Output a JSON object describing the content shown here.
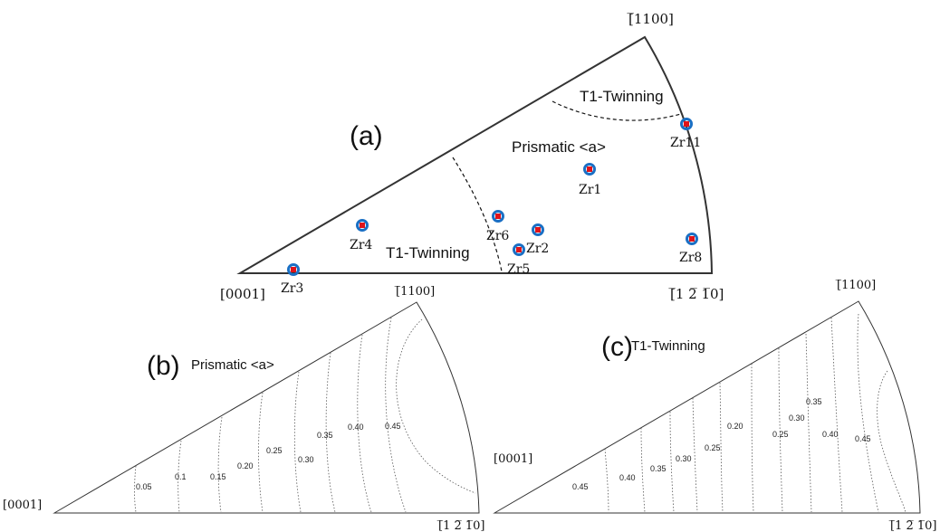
{
  "panel_a": {
    "label": "(a)",
    "directions": {
      "corner_top": "[̅1100]",
      "corner_left": "[0001]",
      "corner_right": "[̅1 2̅ 1̅0]"
    },
    "regions": {
      "upper": "T1-Twinning",
      "middle": "Prismatic <a>",
      "lower": "T1-Twinning"
    },
    "samples": [
      {
        "name": "Zr11"
      },
      {
        "name": "Zr1"
      },
      {
        "name": "Zr6"
      },
      {
        "name": "Zr2"
      },
      {
        "name": "Zr4"
      },
      {
        "name": "Zr5"
      },
      {
        "name": "Zr8"
      },
      {
        "name": "Zr3"
      }
    ],
    "marker_colors": {
      "ring": "#1a6fc4",
      "core": "#e0141a"
    }
  },
  "panel_b": {
    "label": "(b)",
    "title": "Prismatic <a>",
    "directions": {
      "corner_top": "[̅1100]",
      "corner_left": "[0001]",
      "corner_right": "[̅1 2̅ 1̅0]"
    },
    "contour_labels": [
      "0.05",
      "0.1",
      "0.15",
      "0.20",
      "0.25",
      "0.30",
      "0.35",
      "0.40",
      "0.45"
    ]
  },
  "panel_c": {
    "label": "(c)",
    "title": "T1-Twinning",
    "directions": {
      "corner_top": "[̅1100]",
      "corner_left": "[0001]",
      "corner_right": "[̅1 2̅ 1̅0]"
    },
    "contour_labels": [
      "0.45",
      "0.40",
      "0.35",
      "0.30",
      "0.25",
      "0.20",
      "0.25",
      "0.30",
      "0.35",
      "0.40",
      "0.45"
    ]
  }
}
